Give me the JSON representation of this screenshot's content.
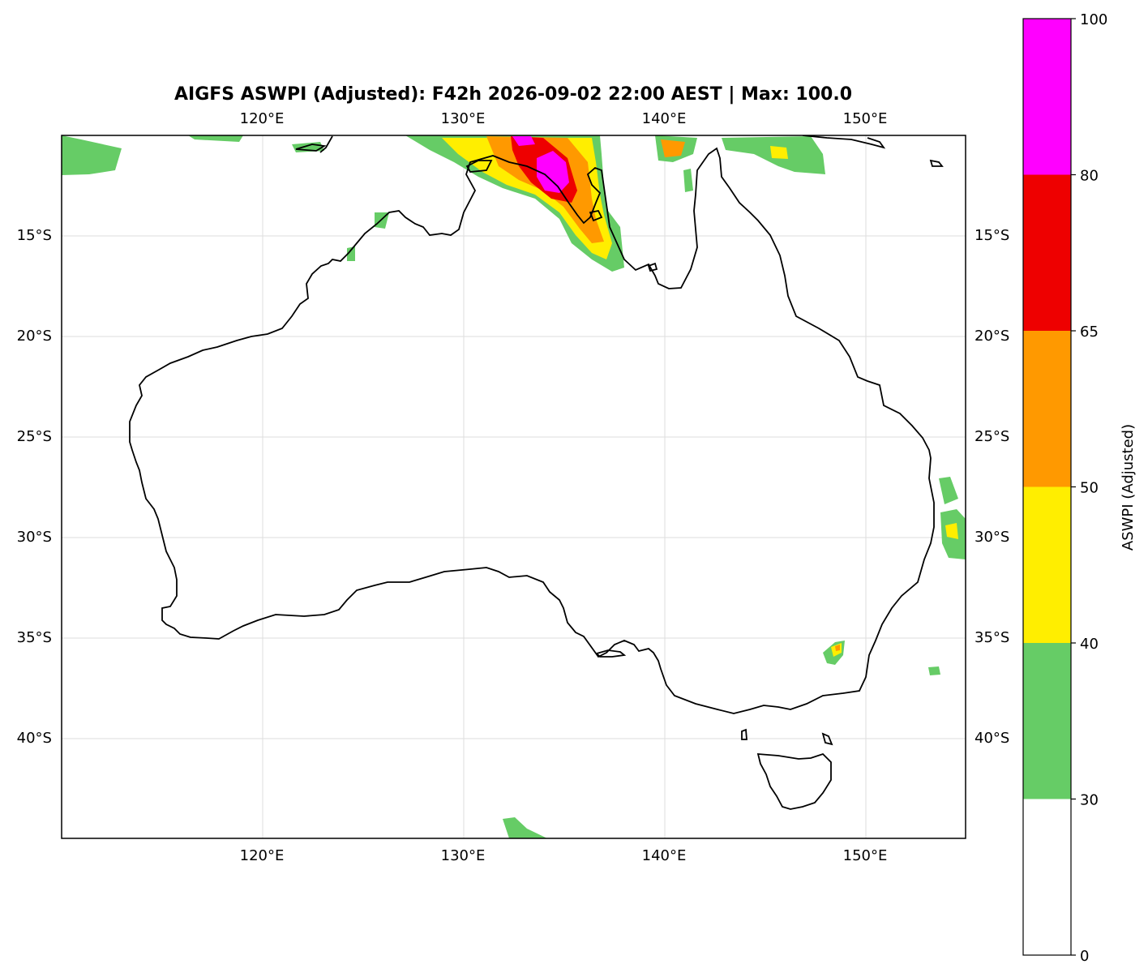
{
  "title": "AIGFS ASWPI (Adjusted): F42h 2026-09-02 22:00 AEST | Max: 100.0",
  "map": {
    "lon_ticks": [
      "120°E",
      "130°E",
      "140°E",
      "150°E"
    ],
    "lat_ticks": [
      "15°S",
      "20°S",
      "25°S",
      "30°S",
      "35°S",
      "40°S"
    ],
    "lon_range": [
      110,
      155
    ],
    "lat_range": [
      -45,
      -10
    ],
    "gridlines": true
  },
  "colorbar": {
    "label": "ASWPI (Adjusted)",
    "tick_labels": [
      "0",
      "30",
      "40",
      "50",
      "65",
      "80",
      "100"
    ],
    "bands": [
      {
        "from": 0,
        "to": 30,
        "color": "#ffffff"
      },
      {
        "from": 30,
        "to": 40,
        "color": "#66cc66"
      },
      {
        "from": 40,
        "to": 50,
        "color": "#ffee00"
      },
      {
        "from": 50,
        "to": 65,
        "color": "#ff9900"
      },
      {
        "from": 65,
        "to": 80,
        "color": "#ee0000"
      },
      {
        "from": 80,
        "to": 100,
        "color": "#ff00ff"
      }
    ]
  }
}
